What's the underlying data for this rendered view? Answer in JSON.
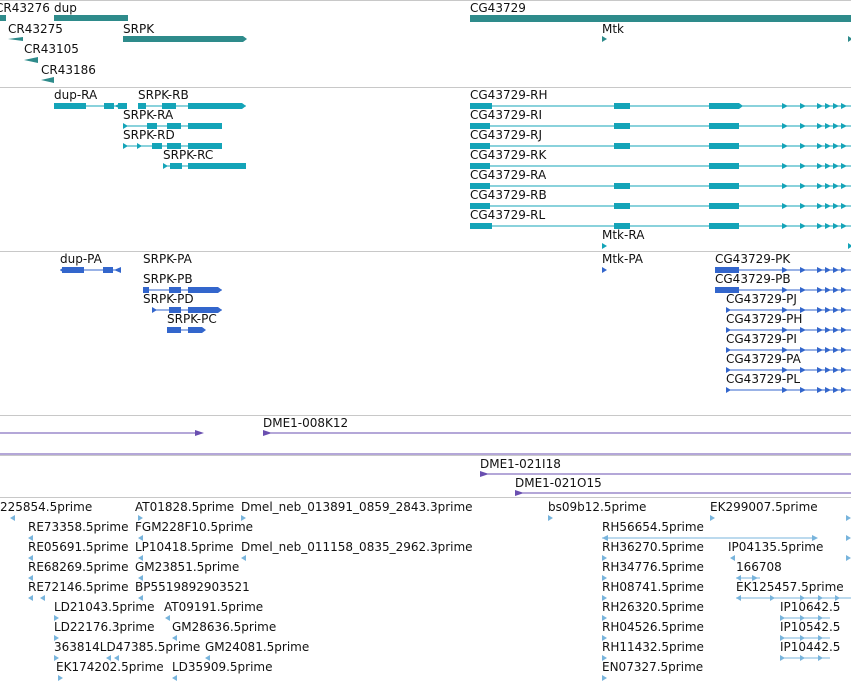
{
  "colors": {
    "gene": "#2e8b8b",
    "transcript": "#14a4b8",
    "protein": "#3366cc",
    "clone": "#6a4fb0",
    "est": "#78b4dc",
    "separator": "#c8c8c8"
  },
  "tracks": {
    "genes": {
      "items": [
        {
          "id": "cr43276",
          "label": "CR43276"
        },
        {
          "id": "dup",
          "label": "dup"
        },
        {
          "id": "cg43729",
          "label": "CG43729"
        },
        {
          "id": "cr43275",
          "label": "CR43275"
        },
        {
          "id": "srpk",
          "label": "SRPK"
        },
        {
          "id": "mtk",
          "label": "Mtk"
        },
        {
          "id": "cr43105",
          "label": "CR43105"
        },
        {
          "id": "cr43186",
          "label": "CR43186"
        }
      ]
    },
    "transcripts": {
      "items": [
        {
          "id": "dup-ra",
          "label": "dup-RA"
        },
        {
          "id": "srpk-rb",
          "label": "SRPK-RB"
        },
        {
          "id": "srpk-ra",
          "label": "SRPK-RA"
        },
        {
          "id": "srpk-rd",
          "label": "SRPK-RD"
        },
        {
          "id": "srpk-rc",
          "label": "SRPK-RC"
        },
        {
          "id": "cg43729-rh",
          "label": "CG43729-RH"
        },
        {
          "id": "cg43729-ri",
          "label": "CG43729-RI"
        },
        {
          "id": "cg43729-rj",
          "label": "CG43729-RJ"
        },
        {
          "id": "cg43729-rk",
          "label": "CG43729-RK"
        },
        {
          "id": "cg43729-ra",
          "label": "CG43729-RA"
        },
        {
          "id": "cg43729-rb",
          "label": "CG43729-RB"
        },
        {
          "id": "cg43729-rl",
          "label": "CG43729-RL"
        },
        {
          "id": "mtk-ra",
          "label": "Mtk-RA"
        }
      ]
    },
    "proteins": {
      "items": [
        {
          "id": "dup-pa",
          "label": "dup-PA"
        },
        {
          "id": "srpk-pa",
          "label": "SRPK-PA"
        },
        {
          "id": "srpk-pb",
          "label": "SRPK-PB"
        },
        {
          "id": "srpk-pd",
          "label": "SRPK-PD"
        },
        {
          "id": "srpk-pc",
          "label": "SRPK-PC"
        },
        {
          "id": "mtk-pa",
          "label": "Mtk-PA"
        },
        {
          "id": "cg43729-pk",
          "label": "CG43729-PK"
        },
        {
          "id": "cg43729-pb",
          "label": "CG43729-PB"
        },
        {
          "id": "cg43729-pj",
          "label": "CG43729-PJ"
        },
        {
          "id": "cg43729-ph",
          "label": "CG43729-PH"
        },
        {
          "id": "cg43729-pi",
          "label": "CG43729-PI"
        },
        {
          "id": "cg43729-pa",
          "label": "CG43729-PA"
        },
        {
          "id": "cg43729-pl",
          "label": "CG43729-PL"
        }
      ]
    },
    "clones": {
      "items": [
        {
          "id": "dme1-008k12",
          "label": "DME1-008K12"
        },
        {
          "id": "dme1-021i18",
          "label": "DME1-021I18"
        },
        {
          "id": "dme1-021o15",
          "label": "DME1-021O15"
        }
      ]
    },
    "ests": {
      "items": [
        {
          "id": "e1",
          "label": "225854.5prime"
        },
        {
          "id": "e2",
          "label": "AT01828.5prime"
        },
        {
          "id": "e3",
          "label": "Dmel_neb_013891_0859_2843.3prime"
        },
        {
          "id": "e4",
          "label": "bs09b12.5prime"
        },
        {
          "id": "e5",
          "label": "EK299007.5prime"
        },
        {
          "id": "e6",
          "label": "RE73358.5prime"
        },
        {
          "id": "e7",
          "label": "FGM228F10.5prime"
        },
        {
          "id": "e8",
          "label": "RH56654.5prime"
        },
        {
          "id": "e9",
          "label": "RE05691.5prime"
        },
        {
          "id": "e10",
          "label": "LP10418.5prime"
        },
        {
          "id": "e11",
          "label": "Dmel_neb_011158_0835_2962.3prime"
        },
        {
          "id": "e12",
          "label": "RH36270.5prime"
        },
        {
          "id": "e13",
          "label": "IP04135.5prime"
        },
        {
          "id": "e14",
          "label": "RE68269.5prime"
        },
        {
          "id": "e15",
          "label": "GM23851.5prime"
        },
        {
          "id": "e16",
          "label": "RH34776.5prime"
        },
        {
          "id": "e17",
          "label": "166708"
        },
        {
          "id": "e18",
          "label": "RE72146.5prime"
        },
        {
          "id": "e19",
          "label": "BP5519892903521"
        },
        {
          "id": "e20",
          "label": "RH08741.5prime"
        },
        {
          "id": "e21",
          "label": "EK125457.5prime"
        },
        {
          "id": "e22",
          "label": "LD21043.5prime"
        },
        {
          "id": "e23",
          "label": "AT09191.5prime"
        },
        {
          "id": "e24",
          "label": "RH26320.5prime"
        },
        {
          "id": "e25",
          "label": "IP10642.5"
        },
        {
          "id": "e26",
          "label": "LD22176.3prime"
        },
        {
          "id": "e27",
          "label": "GM28636.5prime"
        },
        {
          "id": "e28",
          "label": "RH04526.5prime"
        },
        {
          "id": "e29",
          "label": "IP10542.5"
        },
        {
          "id": "e30",
          "label": "363814LD47385.5prime"
        },
        {
          "id": "e31",
          "label": "GM24081.5prime"
        },
        {
          "id": "e32",
          "label": "RH11432.5prime"
        },
        {
          "id": "e33",
          "label": "IP10442.5"
        },
        {
          "id": "e34",
          "label": "EK174202.5prime"
        },
        {
          "id": "e35",
          "label": "LD35909.5prime"
        },
        {
          "id": "e36",
          "label": "EN07327.5prime"
        }
      ]
    }
  }
}
